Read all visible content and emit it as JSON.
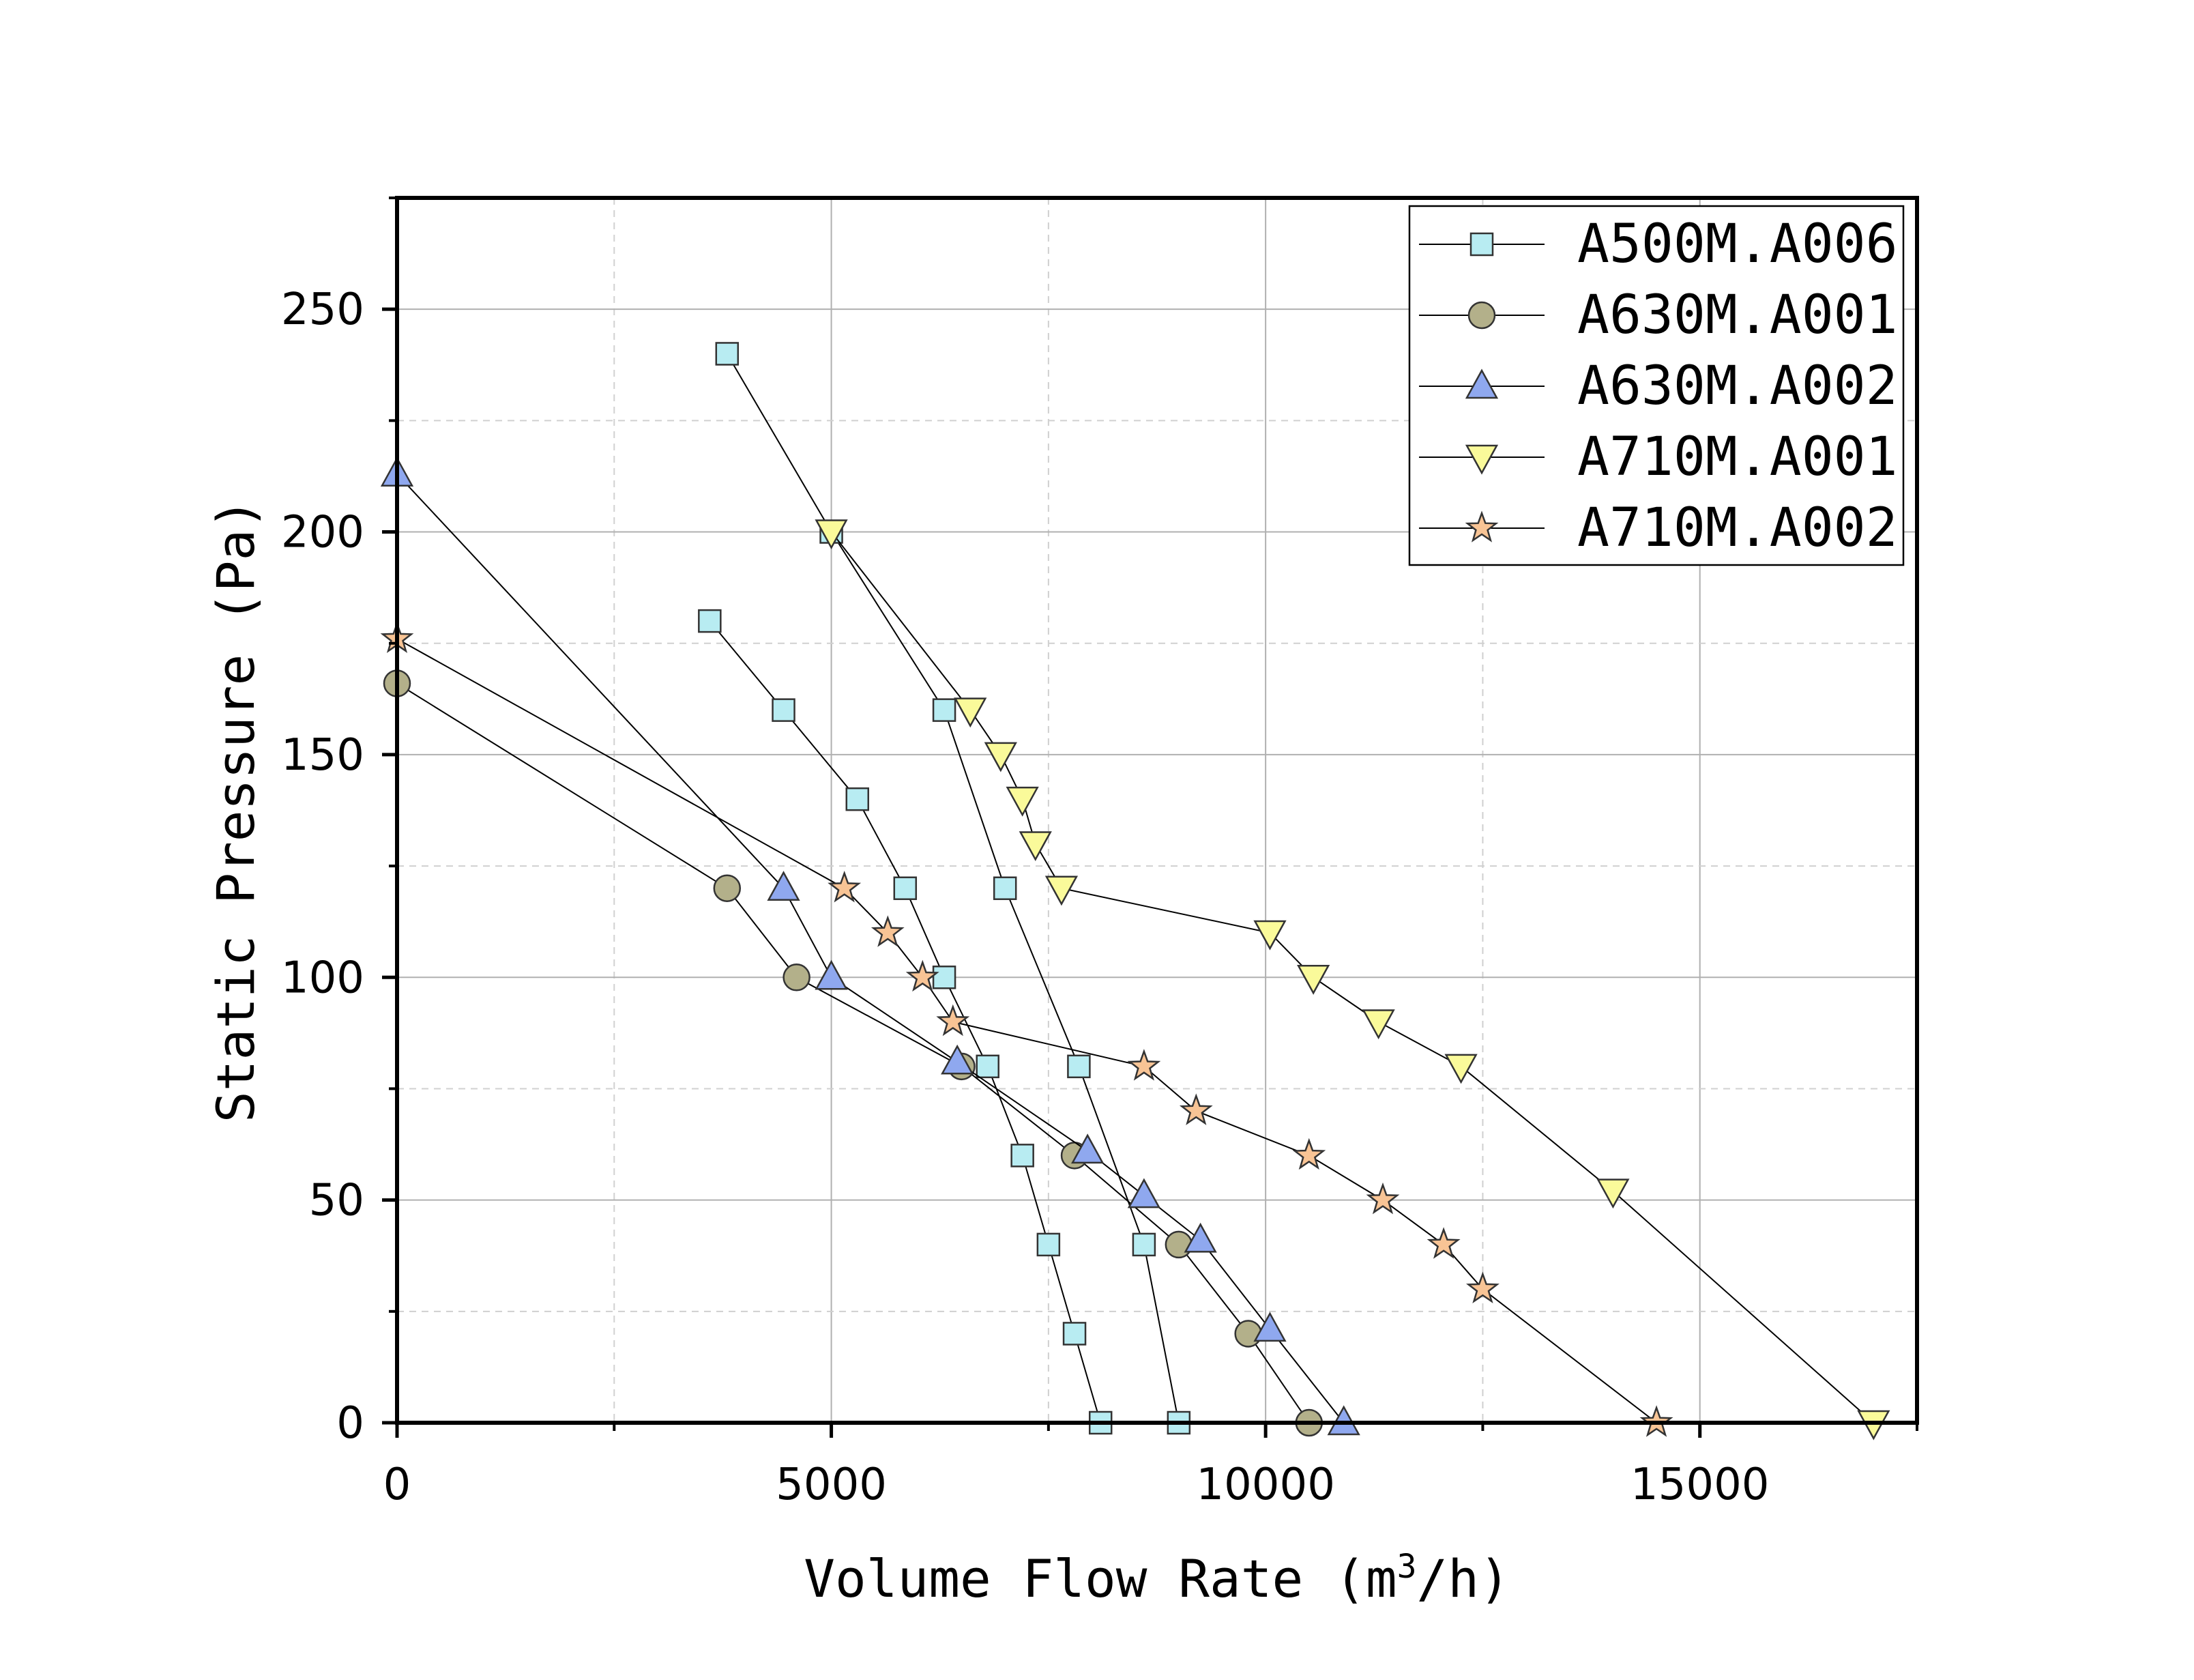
{
  "chart_data": {
    "type": "line",
    "title": "",
    "xlabel_text": "Volume Flow Rate (m",
    "xlabel_sup": "3",
    "xlabel_tail": "/h)",
    "ylabel": "Static Pressure (Pa)",
    "xlim": [
      0,
      17500
    ],
    "ylim": [
      0,
      275
    ],
    "xticks": [
      0,
      5000,
      10000,
      15000
    ],
    "yticks": [
      0,
      50,
      100,
      150,
      200,
      250
    ],
    "xminor": [
      2500,
      7500,
      12500,
      17500
    ],
    "yminor": [
      25,
      75,
      125,
      175,
      225,
      275
    ],
    "grid": true,
    "legend_position": "top-right",
    "series": [
      {
        "name": "A500M.A006",
        "marker": "square",
        "color": "#b8ecf2",
        "points": [
          [
            3800,
            240
          ],
          [
            5000,
            200
          ],
          [
            6300,
            160
          ],
          [
            7000,
            120
          ],
          [
            7850,
            80
          ],
          [
            8600,
            40
          ],
          [
            9000,
            0
          ]
        ]
      },
      {
        "name": "A500M.A006",
        "marker": "square",
        "color": "#b8ecf2",
        "legend": false,
        "points": [
          [
            3600,
            180
          ],
          [
            4450,
            160
          ],
          [
            5300,
            140
          ],
          [
            5850,
            120
          ],
          [
            6300,
            100
          ],
          [
            6800,
            80
          ],
          [
            7200,
            60
          ],
          [
            7500,
            40
          ],
          [
            7800,
            20
          ],
          [
            8100,
            0
          ]
        ]
      },
      {
        "name": "A630M.A001",
        "marker": "circle",
        "color": "#b3b08a",
        "points": [
          [
            0,
            166
          ],
          [
            3800,
            120
          ],
          [
            4600,
            100
          ],
          [
            6500,
            80
          ],
          [
            7800,
            60
          ],
          [
            9000,
            40
          ],
          [
            9800,
            20
          ],
          [
            10500,
            0
          ]
        ]
      },
      {
        "name": "A630M.A002",
        "marker": "triangle-up",
        "color": "#8fa8ef",
        "points": [
          [
            0,
            213
          ],
          [
            4450,
            120
          ],
          [
            5000,
            100
          ],
          [
            6450,
            81
          ],
          [
            7950,
            61
          ],
          [
            8600,
            51
          ],
          [
            9250,
            41
          ],
          [
            10050,
            21
          ],
          [
            10900,
            0
          ]
        ]
      },
      {
        "name": "A710M.A001",
        "marker": "triangle-down",
        "color": "#fafa9a",
        "points": [
          [
            5000,
            200
          ],
          [
            6600,
            160
          ],
          [
            6950,
            150
          ],
          [
            7200,
            140
          ],
          [
            7350,
            130
          ],
          [
            7650,
            120
          ],
          [
            10050,
            110
          ],
          [
            10550,
            100
          ],
          [
            11300,
            90
          ],
          [
            12250,
            80
          ],
          [
            14000,
            52
          ],
          [
            17000,
            0
          ]
        ]
      },
      {
        "name": "A710M.A002",
        "marker": "star",
        "color": "#f8c495",
        "points": [
          [
            0,
            176
          ],
          [
            5150,
            120
          ],
          [
            5650,
            110
          ],
          [
            6050,
            100
          ],
          [
            6400,
            90
          ],
          [
            8600,
            80
          ],
          [
            9200,
            70
          ],
          [
            10500,
            60
          ],
          [
            11350,
            50
          ],
          [
            12050,
            40
          ],
          [
            12500,
            30
          ],
          [
            14500,
            0
          ]
        ]
      }
    ]
  }
}
